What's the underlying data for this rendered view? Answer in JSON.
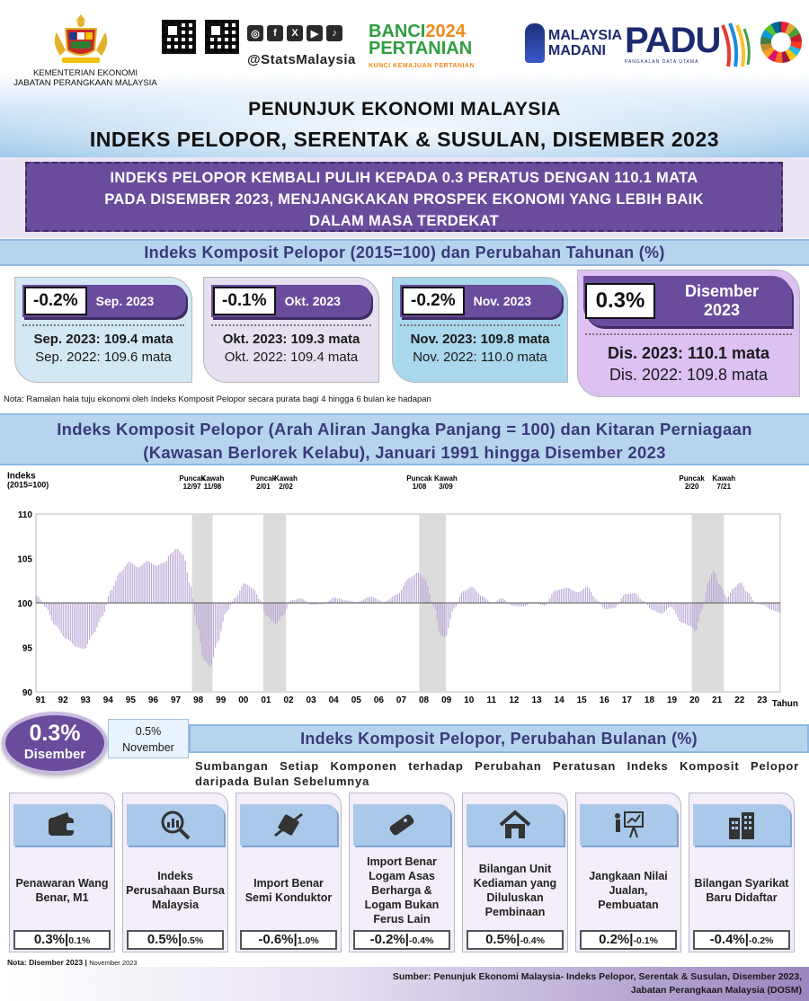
{
  "header": {
    "ministry_line1": "KEMENTERIAN EKONOMI",
    "ministry_line2": "JABATAN PERANGKAAN MALAYSIA",
    "social_handle": "@StatsMalaysia",
    "social_icons": [
      "instagram-icon",
      "facebook-icon",
      "x-icon",
      "youtube-icon",
      "tiktok-icon"
    ],
    "banci_line1a": "BANCI",
    "banci_line1b": "2024",
    "banci_line2": "PERTANIAN",
    "banci_line3": "KUNCI KEMAJUAN PERTANIAN",
    "madani_line1": "MALAYSIA",
    "madani_line2": "MADANI",
    "padu_title": "PADU",
    "padu_sub": "PANGKALAN DATA UTAMA",
    "title_line1": "PENUNJUK EKONOMI MALAYSIA",
    "title_line2": "INDEKS PELOPOR, SERENTAK & SUSULAN, DISEMBER 2023"
  },
  "headline": {
    "line1": "INDEKS PELOPOR KEMBALI PULIH KEPADA 0.3 PERATUS DENGAN 110.1 MATA",
    "line2": "PADA DISEMBER 2023, MENJANGKAKAN  PROSPEK EKONOMI YANG LEBIH BAIK",
    "line3": "DALAM MASA TERDEKAT"
  },
  "composite_section": {
    "title": "Indeks Komposit Pelopor (2015=100)  dan Perubahan Tahunan (%)",
    "cards": [
      {
        "pct": "-0.2%",
        "month": "Sep. 2023",
        "line1": "Sep. 2023: 109.4 mata",
        "line2": "Sep. 2022: 109.6 mata"
      },
      {
        "pct": "-0.1%",
        "month": "Okt. 2023",
        "line1": "Okt. 2023: 109.3 mata",
        "line2": "Okt. 2022: 109.4 mata"
      },
      {
        "pct": "-0.2%",
        "month": "Nov. 2023",
        "line1": "Nov. 2023: 109.8 mata",
        "line2": "Nov. 2022: 110.0 mata"
      },
      {
        "pct": "0.3%",
        "month_line1": "Disember",
        "month_line2": "2023",
        "line1": "Dis. 2023: 110.1 mata",
        "line2": "Dis. 2022: 109.8 mata"
      }
    ],
    "note": "Nota: Ramalan hala tuju ekonomi oleh Indeks Komposit Pelopor secara purata bagi 4 hingga 6 bulan ke hadapan"
  },
  "long_chart": {
    "title_line1": "Indeks Komposit Pelopor (Arah Aliran Jangka Panjang = 100) dan Kitaran Perniagaan",
    "title_line2": "(Kawasan Berlorek Kelabu), Januari 1991 hingga Disember 2023"
  },
  "chart_data": {
    "type": "bar",
    "ylabel_line1": "Indeks",
    "ylabel_line2": "(2015=100)",
    "xlabel": "Tahun",
    "ylim": [
      90,
      110
    ],
    "yticks": [
      110,
      105,
      100,
      95,
      90
    ],
    "baseline": 100,
    "x_start": 1991,
    "x_end": 2024,
    "xticks": [
      "91",
      "92",
      "93",
      "94",
      "95",
      "96",
      "97",
      "98",
      "99",
      "00",
      "01",
      "02",
      "03",
      "04",
      "05",
      "06",
      "07",
      "08",
      "09",
      "10",
      "11",
      "12",
      "13",
      "14",
      "15",
      "16",
      "17",
      "18",
      "19",
      "20",
      "21",
      "22",
      "23"
    ],
    "recessions": [
      {
        "peak": "12/97",
        "trough": "11/98",
        "start": 1997.92,
        "end": 1998.83
      },
      {
        "peak": "2/01",
        "trough": "2/02",
        "start": 2001.08,
        "end": 2002.08
      },
      {
        "peak": "1/08",
        "trough": "3/09",
        "start": 2008.0,
        "end": 2009.17
      },
      {
        "peak": "2/20",
        "trough": "7/21",
        "start": 2020.08,
        "end": 2021.5
      }
    ],
    "peak_label": "Puncak",
    "trough_label": "Kawah",
    "keypoints": [
      [
        1991.0,
        100.8
      ],
      [
        1991.4,
        99.5
      ],
      [
        1991.8,
        97.5
      ],
      [
        1992.3,
        96.0
      ],
      [
        1992.8,
        95.0
      ],
      [
        1993.1,
        94.8
      ],
      [
        1993.5,
        96.5
      ],
      [
        1993.9,
        98.5
      ],
      [
        1994.3,
        101.5
      ],
      [
        1994.7,
        103.5
      ],
      [
        1995.1,
        104.6
      ],
      [
        1995.5,
        104.0
      ],
      [
        1995.9,
        104.7
      ],
      [
        1996.3,
        104.2
      ],
      [
        1996.7,
        104.6
      ],
      [
        1996.9,
        105.5
      ],
      [
        1997.2,
        106.1
      ],
      [
        1997.5,
        105.4
      ],
      [
        1997.8,
        102.0
      ],
      [
        1998.1,
        97.5
      ],
      [
        1998.4,
        93.6
      ],
      [
        1998.7,
        92.8
      ],
      [
        1999.0,
        95.5
      ],
      [
        1999.4,
        99.0
      ],
      [
        1999.8,
        100.6
      ],
      [
        2000.2,
        102.2
      ],
      [
        2000.6,
        101.6
      ],
      [
        2000.9,
        100.3
      ],
      [
        2001.2,
        98.5
      ],
      [
        2001.6,
        97.6
      ],
      [
        2001.9,
        98.6
      ],
      [
        2002.3,
        100.3
      ],
      [
        2002.7,
        100.5
      ],
      [
        2003.2,
        99.8
      ],
      [
        2003.7,
        99.9
      ],
      [
        2004.2,
        100.6
      ],
      [
        2004.7,
        100.3
      ],
      [
        2005.2,
        100.1
      ],
      [
        2005.8,
        100.7
      ],
      [
        2006.4,
        100.1
      ],
      [
        2007.0,
        101.0
      ],
      [
        2007.5,
        102.8
      ],
      [
        2007.9,
        103.4
      ],
      [
        2008.2,
        102.7
      ],
      [
        2008.6,
        99.7
      ],
      [
        2008.9,
        96.4
      ],
      [
        2009.1,
        96.1
      ],
      [
        2009.5,
        99.4
      ],
      [
        2009.9,
        101.3
      ],
      [
        2010.3,
        101.8
      ],
      [
        2010.7,
        100.8
      ],
      [
        2011.2,
        100.0
      ],
      [
        2011.6,
        100.5
      ],
      [
        2012.1,
        99.7
      ],
      [
        2012.6,
        99.6
      ],
      [
        2013.0,
        100.1
      ],
      [
        2013.5,
        99.7
      ],
      [
        2014.0,
        101.4
      ],
      [
        2014.5,
        101.7
      ],
      [
        2015.0,
        101.2
      ],
      [
        2015.4,
        101.8
      ],
      [
        2015.8,
        100.4
      ],
      [
        2016.2,
        99.3
      ],
      [
        2016.6,
        99.4
      ],
      [
        2017.1,
        101.0
      ],
      [
        2017.5,
        101.1
      ],
      [
        2017.9,
        100.2
      ],
      [
        2018.3,
        99.2
      ],
      [
        2018.7,
        98.8
      ],
      [
        2019.1,
        99.6
      ],
      [
        2019.6,
        97.8
      ],
      [
        2020.0,
        97.4
      ],
      [
        2020.2,
        96.8
      ],
      [
        2020.5,
        99.3
      ],
      [
        2020.8,
        102.5
      ],
      [
        2021.0,
        103.6
      ],
      [
        2021.3,
        102.0
      ],
      [
        2021.6,
        100.6
      ],
      [
        2021.9,
        101.7
      ],
      [
        2022.2,
        102.3
      ],
      [
        2022.5,
        101.2
      ],
      [
        2022.9,
        99.9
      ],
      [
        2023.2,
        99.8
      ],
      [
        2023.6,
        99.2
      ],
      [
        2023.95,
        98.9
      ]
    ]
  },
  "monthly_section": {
    "dec_value": "0.3%",
    "dec_label": "Disember",
    "nov_value": "0.5%",
    "nov_label": "November",
    "title": "Indeks Komposit Pelopor, Perubahan Bulanan (%)",
    "subtitle": "Sumbangan Setiap Komponen terhadap Perubahan Peratusan Indeks Komposit Pelopor daripada Bulan Sebelumnya",
    "components": [
      {
        "icon": "wallet-icon",
        "name": "Penawaran Wang Benar, M1",
        "dec": "0.3%",
        "nov": "0.1%"
      },
      {
        "icon": "stock-chart-icon",
        "name": "Indeks Perusahaan Bursa Malaysia",
        "dec": "0.5%",
        "nov": "0.5%"
      },
      {
        "icon": "semiconductor-icon",
        "name": "Import Benar Semi Konduktor",
        "dec": "-0.6%",
        "nov": "1.0%"
      },
      {
        "icon": "metal-bar-icon",
        "name": "Import Benar Logam Asas Berharga & Logam Bukan Ferus Lain",
        "dec": "-0.2%",
        "nov": "-0.4%"
      },
      {
        "icon": "house-icon",
        "name": "Bilangan Unit Kediaman yang Diluluskan Pembinaan",
        "dec": "0.5%",
        "nov": "-0.4%"
      },
      {
        "icon": "presentation-icon",
        "name": "Jangkaan Nilai Jualan, Pembuatan",
        "dec": "0.2%",
        "nov": "-0.1%"
      },
      {
        "icon": "building-icon",
        "name": "Bilangan Syarikat Baru Didaftar",
        "dec": "-0.4%",
        "nov": "-0.2%"
      }
    ],
    "note_main": "Nota: Disember  2023",
    "note_small": "November  2023"
  },
  "footer": {
    "source_line1": "Sumber: Penunjuk  Ekonomi Malaysia- Indeks Pelopor,  Serentak & Susulan, Disember 2023,",
    "source_line2": "Jabatan Perangkaan Malaysia (DOSM)"
  },
  "colors": {
    "purple": "#6a4c9c",
    "light_blue": "#b7d4ef",
    "bar": "#b9a6d6"
  }
}
